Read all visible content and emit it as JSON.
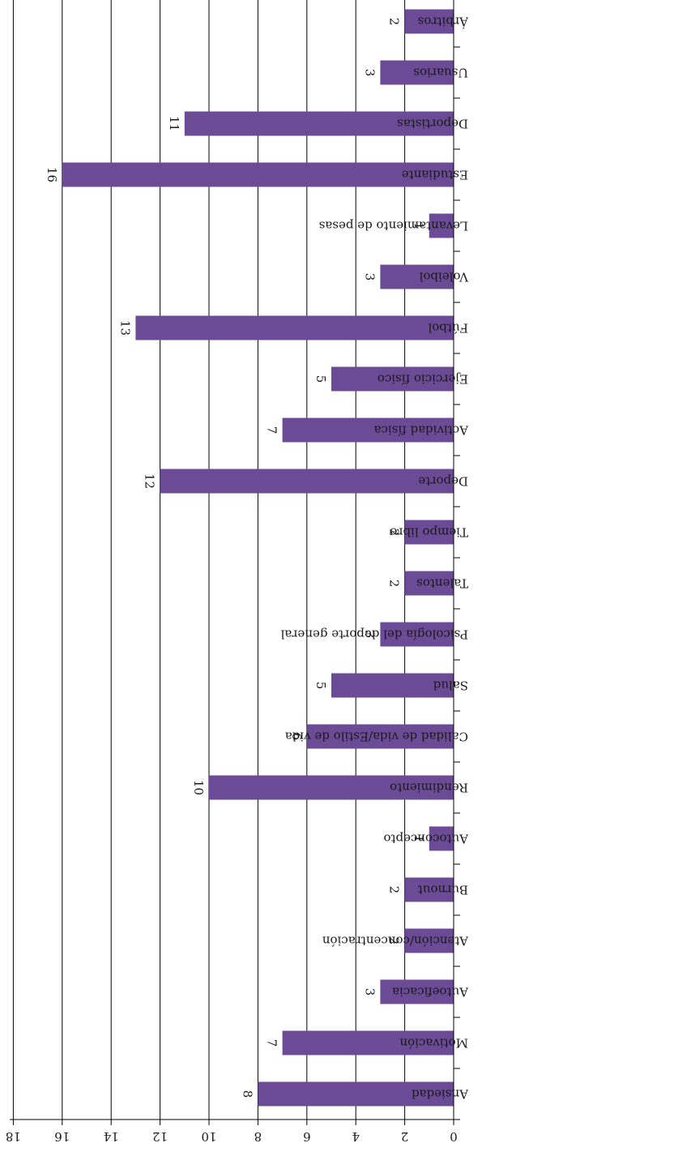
{
  "chart_data": {
    "type": "bar",
    "orientation": "horizontal",
    "categories": [
      "Ansiedad",
      "Motivación",
      "Autoeficacia",
      "Atención/concentración",
      "Burnout",
      "Autoconcepto",
      "Rendimiento",
      "Calidad de vida/Estilo de vida",
      "Salud",
      "Psicología del deporte general",
      "Talentos",
      "Tiempo libre",
      "Deporte",
      "Actividad física",
      "Ejercicio físico",
      "Fútbol",
      "Voleibol",
      "Levantamiento de pesas",
      "Estudiante",
      "Deportistas",
      "Usuarios",
      "Árbitros"
    ],
    "values": [
      8,
      7,
      3,
      2,
      2,
      1,
      10,
      6,
      5,
      3,
      2,
      2,
      12,
      7,
      5,
      13,
      3,
      1,
      16,
      11,
      3,
      2
    ],
    "value_labels": [
      "8",
      "7",
      "3",
      "2",
      "2",
      "1",
      "10",
      "6",
      "5",
      "3",
      "2",
      "2",
      "12",
      "7",
      "5",
      "13",
      "3",
      "1",
      "16",
      "11",
      "3",
      "2"
    ],
    "value_axis": {
      "min": 0,
      "max": 18,
      "ticks": [
        0,
        2,
        4,
        6,
        8,
        10,
        12,
        14,
        16,
        18
      ],
      "tick_labels": [
        "0",
        "2",
        "4",
        "6",
        "8",
        "10",
        "12",
        "14",
        "16",
        "18"
      ]
    },
    "grid": true,
    "legend": "none",
    "title": "",
    "xlabel": "",
    "ylabel": "",
    "rotation": "image rotated 180 degrees",
    "colors": {
      "bar": "#6b4a96",
      "grid": "#000000",
      "axis": "#000000"
    }
  }
}
